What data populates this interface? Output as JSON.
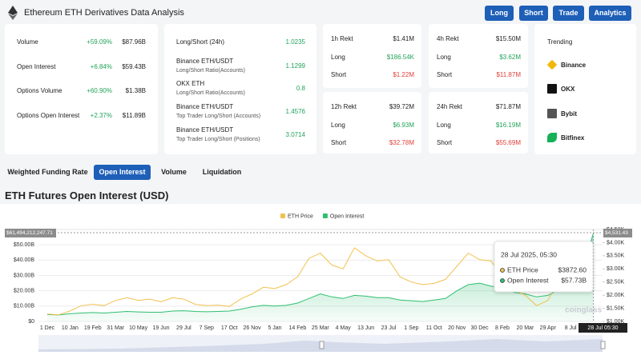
{
  "header": {
    "title": "Ethereum ETH Derivatives Data Analysis",
    "buttons": [
      "Long",
      "Short",
      "Trade",
      "Analytics"
    ]
  },
  "overview": {
    "rows": [
      {
        "label": "Volume",
        "change": "+59.09%",
        "value": "$87.96B"
      },
      {
        "label": "Open Interest",
        "change": "+6.84%",
        "value": "$59.43B"
      },
      {
        "label": "Options Volume",
        "change": "+60.90%",
        "value": "$1.38B"
      },
      {
        "label": "Options Open Interest",
        "change": "+2.37%",
        "value": "$11.89B"
      }
    ]
  },
  "ratios": {
    "rows": [
      {
        "label": "Long/Short (24h)",
        "value": "1.0235"
      },
      {
        "label": "Binance ETH/USDT",
        "sublabel": "Long/Short Ratio(Accounts)",
        "value": "1.1299"
      },
      {
        "label": "OKX ETH",
        "sublabel": "Long/Short Ratio(Accounts)",
        "value": "0.8"
      },
      {
        "label": "Binance ETH/USDT",
        "sublabel": "Top Trader Long/Short (Accounts)",
        "value": "1.4576"
      },
      {
        "label": "Binance ETH/USDT",
        "sublabel": "Top Trader Long/Short (Positions)",
        "value": "3.0714"
      }
    ]
  },
  "rekt": [
    {
      "period": "1h Rekt",
      "total": "$1.41M",
      "long_label": "Long",
      "long": "$186.54K",
      "short_label": "Short",
      "short": "$1.22M"
    },
    {
      "period": "4h Rekt",
      "total": "$15.50M",
      "long_label": "Long",
      "long": "$3.62M",
      "short_label": "Short",
      "short": "$11.87M"
    },
    {
      "period": "12h Rekt",
      "total": "$39.72M",
      "long_label": "Long",
      "long": "$6.93M",
      "short_label": "Short",
      "short": "$32.78M"
    },
    {
      "period": "24h Rekt",
      "total": "$71.87M",
      "long_label": "Long",
      "long": "$16.19M",
      "short_label": "Short",
      "short": "$55.69M"
    }
  ],
  "trending": {
    "title": "Trending",
    "items": [
      "Binance",
      "OKX",
      "Bybit",
      "Bitfinex"
    ]
  },
  "tabs": {
    "items": [
      "Weighted Funding Rate",
      "Open Interest",
      "Volume",
      "Liquidation"
    ],
    "active": 1
  },
  "section_title": "ETH Futures Open Interest (USD)",
  "chart_data": {
    "type": "line",
    "categories": [
      "1 Dec",
      null,
      "10 Jan",
      null,
      "19 Feb",
      null,
      "31 Mar",
      null,
      "10 May",
      null,
      "19 Jun",
      null,
      "29 Jul",
      null,
      "7 Sep",
      null,
      "17 Oct",
      null,
      "26 Nov",
      null,
      "5 Jan",
      null,
      "14 Feb",
      null,
      "25 Mar",
      null,
      "4 May",
      null,
      "13 Jun",
      null,
      "23 Jul",
      null,
      "1 Sep",
      null,
      "11 Oct",
      null,
      "20 Nov",
      null,
      "30 Dec",
      null,
      "8 Feb",
      null,
      "20 Mar",
      null,
      "29 Apr",
      null,
      "8 Jul",
      null,
      null
    ],
    "series": [
      {
        "name": "ETH Price",
        "color": "#f2c14e",
        "axis": "y2",
        "values": [
          1280,
          1250,
          1400,
          1600,
          1650,
          1600,
          1800,
          1900,
          1800,
          1850,
          1750,
          1900,
          1850,
          1650,
          1600,
          1620,
          1570,
          1850,
          2050,
          2300,
          2250,
          2400,
          2700,
          3400,
          3600,
          3150,
          3000,
          3800,
          3500,
          3300,
          3350,
          2700,
          2500,
          2400,
          2450,
          2600,
          3100,
          3600,
          3350,
          3300,
          2700,
          2200,
          2000,
          1600,
          1800,
          2600,
          2550,
          3000,
          3872.6
        ]
      },
      {
        "name": "Open Interest",
        "color": "#2fbf71",
        "values": [
          4.5,
          4.2,
          5,
          5.5,
          5.8,
          5.5,
          6,
          6.5,
          6.2,
          6,
          6,
          6.8,
          7,
          6.5,
          6.3,
          6.5,
          6.8,
          8,
          9.5,
          10.5,
          10,
          10.5,
          12,
          15,
          18,
          16,
          15,
          17,
          16.5,
          15.5,
          15.5,
          14,
          13.5,
          13,
          14,
          15,
          20,
          24,
          25,
          23,
          22,
          19,
          18,
          16,
          17,
          21,
          25,
          33,
          57.73
        ]
      }
    ],
    "ylim": [
      0,
      60
    ],
    "yticks": [
      {
        "value": 0,
        "label": "$0"
      },
      {
        "value": 10,
        "label": "$10.00B"
      },
      {
        "value": 20,
        "label": "$20.00B"
      },
      {
        "value": 30,
        "label": "$30.00B"
      },
      {
        "value": 40,
        "label": "$40.00B"
      },
      {
        "value": 50,
        "label": "$50.00B"
      }
    ],
    "y2lim": [
      1000,
      4500
    ],
    "y2ticks": [
      {
        "value": 1000,
        "label": "$1.00K"
      },
      {
        "value": 1500,
        "label": "$1.50K"
      },
      {
        "value": 2000,
        "label": "$2.00K"
      },
      {
        "value": 2500,
        "label": "$2.50K"
      },
      {
        "value": 3000,
        "label": "$3.00K"
      },
      {
        "value": 3500,
        "label": "$3.50K"
      },
      {
        "value": 4000,
        "label": "$4.00K"
      },
      {
        "value": 4500,
        "label": "$4.50K"
      }
    ],
    "grid": true,
    "crosshair": {
      "y_label": "$61,494,212,247.71",
      "y2_label": "$4,531.43",
      "x_label": "28 Jul 05:30"
    },
    "tooltip": {
      "title": "28 Jul 2025, 05:30",
      "values": [
        "$3872.60",
        "$57.73B"
      ]
    },
    "watermark": "coinglass"
  }
}
